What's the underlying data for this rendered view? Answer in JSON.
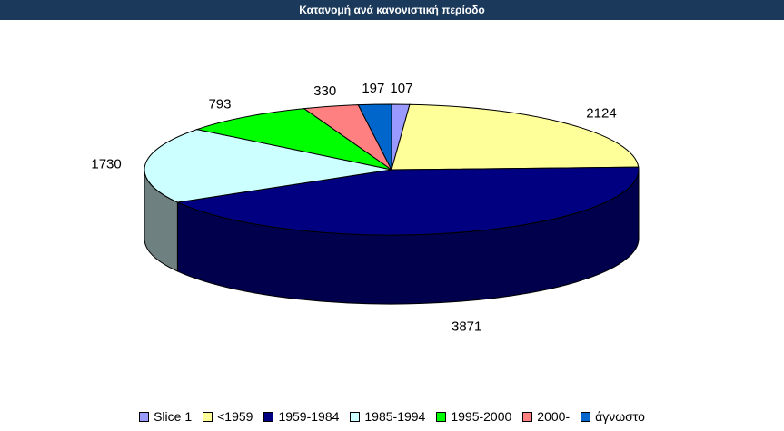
{
  "title": "Κατανομή ανά κανονιστική περίοδο",
  "chart_data": {
    "type": "pie",
    "three_d": true,
    "categories": [
      "Slice 1",
      "<1959",
      "1959-1984",
      "1985-1994",
      "1995-2000",
      "2000-",
      "άγνωστο"
    ],
    "values": [
      107,
      2124,
      3871,
      1730,
      793,
      330,
      197
    ],
    "colors": [
      "#9999ff",
      "#ffff99",
      "#000080",
      "#ccffff",
      "#00ff00",
      "#ff8080",
      "#0066cc"
    ],
    "shade_colors": [
      "#5c5c99",
      "#99995c",
      "#00004d",
      "#6e8080",
      "#009900",
      "#994d4d",
      "#003d7a"
    ],
    "legend_position": "bottom",
    "title": "Κατανομή ανά κανονιστική περίοδο"
  }
}
